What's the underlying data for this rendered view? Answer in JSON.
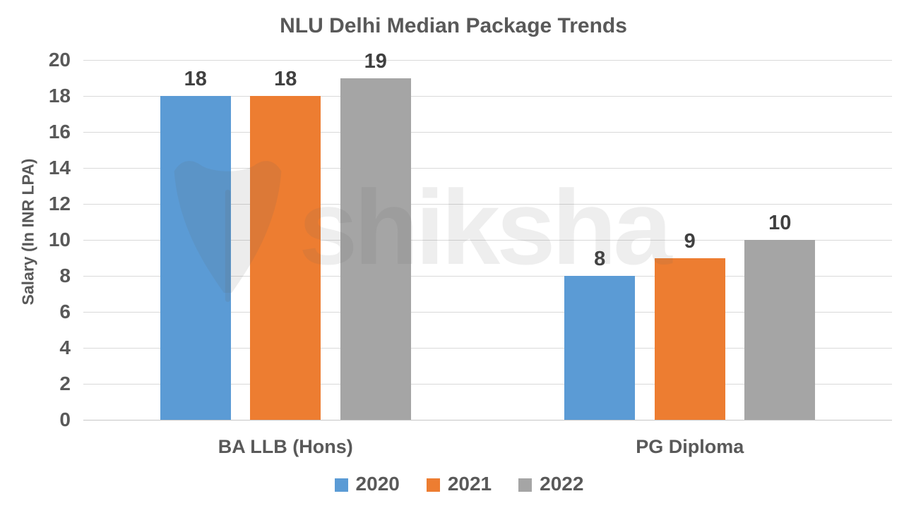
{
  "chart_data": {
    "type": "bar",
    "title": "NLU Delhi Median Package Trends",
    "ylabel": "Salary (In INR LPA)",
    "xlabel": "",
    "categories": [
      "BA LLB (Hons)",
      "PG Diploma"
    ],
    "series": [
      {
        "name": "2020",
        "color": "#5B9BD5",
        "values": [
          18,
          8
        ]
      },
      {
        "name": "2021",
        "color": "#ED7D31",
        "values": [
          18,
          9
        ]
      },
      {
        "name": "2022",
        "color": "#A5A5A5",
        "values": [
          19,
          10
        ]
      }
    ],
    "value_labels": [
      [
        "18",
        "18",
        "19"
      ],
      [
        "8",
        "9",
        "10"
      ]
    ],
    "ylim": [
      0,
      20
    ],
    "ytick_step": 2,
    "ytick_labels": [
      "0",
      "2",
      "4",
      "6",
      "8",
      "10",
      "12",
      "14",
      "16",
      "18",
      "20"
    ],
    "grid": true,
    "legend_position": "bottom",
    "colors": {
      "title_text": "#595959",
      "tick_text": "#595959",
      "value_label_text": "#404040",
      "gridline": "#D9D9D9"
    },
    "watermark_text": "shiksha"
  }
}
